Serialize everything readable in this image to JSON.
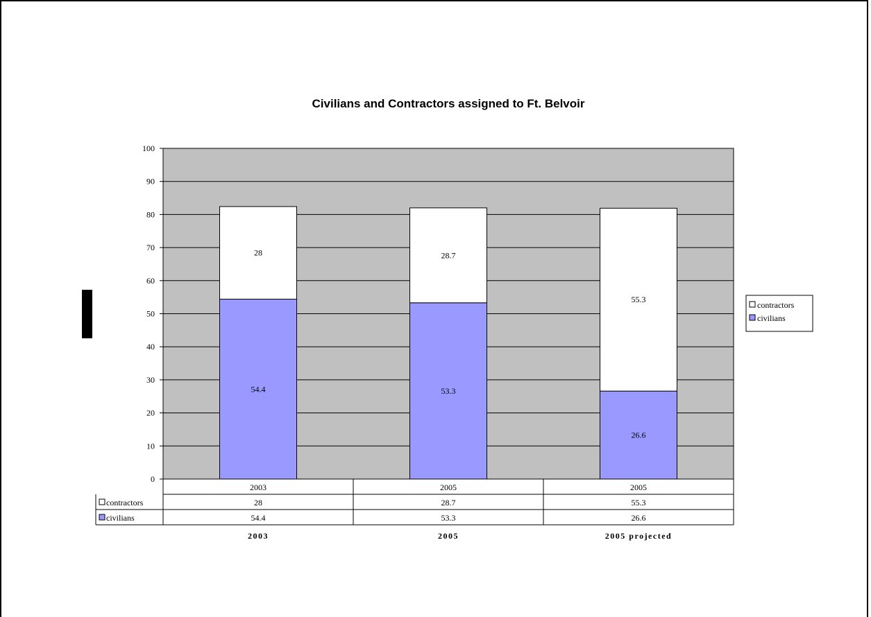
{
  "chart_data": {
    "type": "bar",
    "stacked": true,
    "title": "Civilians and Contractors assigned to Ft. Belvoir",
    "categories": [
      "2003",
      "2005",
      "2005"
    ],
    "category_footers": [
      "2003",
      "2005",
      "2005 projected"
    ],
    "series": [
      {
        "name": "civilians",
        "values": [
          54.4,
          53.3,
          26.6
        ],
        "color": "#9999ff"
      },
      {
        "name": "contractors",
        "values": [
          28,
          28.7,
          55.3
        ],
        "color": "#ffffff"
      }
    ],
    "ylim": [
      0,
      100
    ],
    "yticks": [
      0,
      10,
      20,
      30,
      40,
      50,
      60,
      70,
      80,
      90,
      100
    ],
    "grid": true,
    "plot_background": "#c0c0c0",
    "legend": {
      "position": "right",
      "order": [
        "contractors",
        "civilians"
      ]
    },
    "data_table": true
  }
}
